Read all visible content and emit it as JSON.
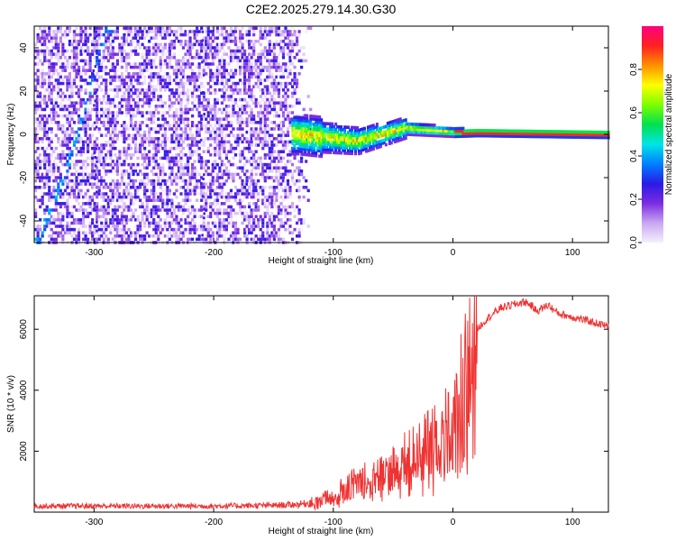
{
  "title": "C2E2.2025.279.14.30.G30",
  "chart_data": [
    {
      "type": "heatmap",
      "xlabel": "Height of straight line (km)",
      "ylabel": "Frequency (Hz)",
      "xlim": [
        -350,
        130
      ],
      "ylim": [
        -50,
        50
      ],
      "xticks": [
        -300,
        -200,
        -100,
        0,
        100
      ],
      "yticks": [
        -40,
        -20,
        0,
        20,
        40
      ],
      "noise_region_x": [
        -350,
        -120
      ],
      "colorbar": {
        "label": "Normalized spectral amplitude",
        "range": [
          0,
          1
        ],
        "ticks": [
          "0.0",
          "0.2",
          "0.4",
          "0.6",
          "0.8"
        ],
        "colors": [
          "#f4f0fc",
          "#c9a6f2",
          "#7a2be0",
          "#2a1be6",
          "#0080ff",
          "#00e5e5",
          "#00e050",
          "#7cff00",
          "#ffff00",
          "#ff9000",
          "#ff2020",
          "#ff0080"
        ]
      },
      "features": [
        {
          "name": "diagonal-trace",
          "x": [
            -348,
            -320,
            -290
          ],
          "y": [
            -50,
            -10,
            50
          ]
        },
        {
          "name": "signal-band",
          "x": [
            -130,
            -80,
            -40,
            0,
            130
          ],
          "y": [
            0,
            -3,
            3,
            1,
            0
          ]
        }
      ]
    },
    {
      "type": "line",
      "xlabel": "Height of straight line (km)",
      "ylabel": "SNR (10 * v/v)",
      "xlim": [
        -350,
        130
      ],
      "ylim": [
        0,
        7100
      ],
      "xticks": [
        -300,
        -200,
        -100,
        0,
        100
      ],
      "yticks": [
        2000,
        4000,
        6000
      ],
      "series": [
        {
          "name": "SNR",
          "color": "#ee3333",
          "x": [
            -350,
            -300,
            -250,
            -200,
            -150,
            -130,
            -120,
            -110,
            -100,
            -90,
            -80,
            -70,
            -60,
            -50,
            -40,
            -30,
            -20,
            -10,
            0,
            10,
            20,
            30,
            40,
            50,
            60,
            65,
            70,
            75,
            80,
            85,
            90,
            100,
            110,
            120,
            130
          ],
          "y": [
            200,
            200,
            200,
            200,
            220,
            250,
            300,
            400,
            600,
            800,
            1000,
            1200,
            1300,
            1500,
            1700,
            2000,
            2200,
            2500,
            3000,
            4200,
            6000,
            6400,
            6700,
            6800,
            6900,
            6800,
            6600,
            6700,
            6800,
            6600,
            6500,
            6400,
            6300,
            6200,
            6100
          ]
        }
      ]
    }
  ]
}
